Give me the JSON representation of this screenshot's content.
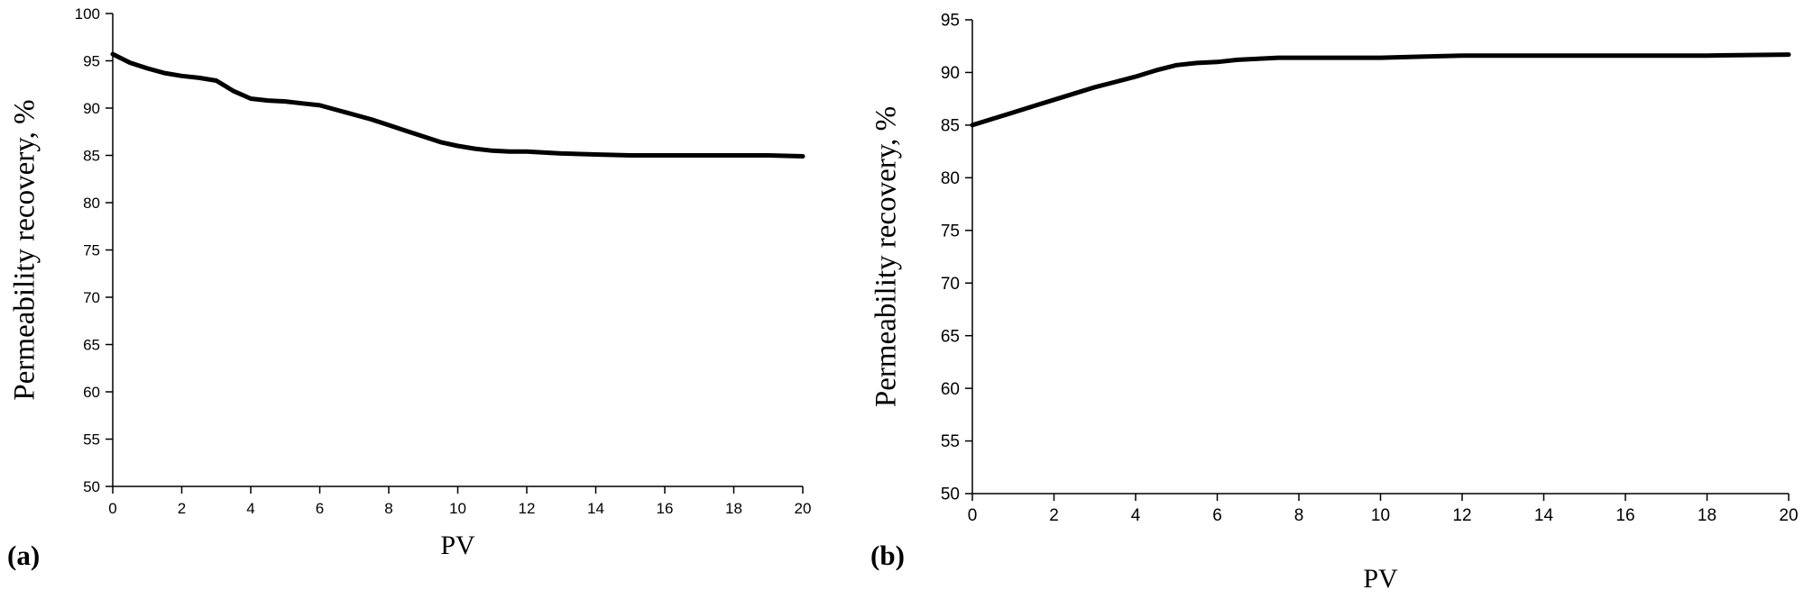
{
  "chart_data": [
    {
      "type": "line",
      "panel_label": "(a)",
      "xlabel": "PV",
      "ylabel": "Permeability recovery, %",
      "xlim": [
        0,
        20
      ],
      "ylim": [
        50,
        100
      ],
      "xticks": [
        0,
        2,
        4,
        6,
        8,
        10,
        12,
        14,
        16,
        18,
        20
      ],
      "yticks": [
        50,
        55,
        60,
        65,
        70,
        75,
        80,
        85,
        90,
        95,
        100
      ],
      "grid": false,
      "series": [
        {
          "x": [
            0,
            0.5,
            1,
            1.5,
            2,
            2.5,
            3,
            3.5,
            4,
            4.5,
            5,
            5.5,
            6,
            6.5,
            7,
            7.5,
            8,
            8.5,
            9,
            9.5,
            10,
            10.5,
            11,
            11.5,
            12,
            13,
            14,
            15,
            16,
            17,
            18,
            19,
            20
          ],
          "y": [
            95.7,
            94.8,
            94.2,
            93.7,
            93.4,
            93.2,
            92.9,
            91.8,
            91.0,
            90.8,
            90.7,
            90.5,
            90.3,
            89.8,
            89.3,
            88.8,
            88.2,
            87.6,
            87.0,
            86.4,
            86.0,
            85.7,
            85.5,
            85.4,
            85.4,
            85.2,
            85.1,
            85.0,
            85.0,
            85.0,
            85.0,
            85.0,
            84.9
          ]
        }
      ]
    },
    {
      "type": "line",
      "panel_label": "(b)",
      "xlabel": "PV",
      "ylabel": "Permeability recovery, %",
      "xlim": [
        0,
        20
      ],
      "ylim": [
        50,
        95
      ],
      "xticks": [
        0,
        2,
        4,
        6,
        8,
        10,
        12,
        14,
        16,
        18,
        20
      ],
      "yticks": [
        50,
        55,
        60,
        65,
        70,
        75,
        80,
        85,
        90,
        95
      ],
      "grid": false,
      "series": [
        {
          "x": [
            0,
            0.5,
            1,
            1.5,
            2,
            2.5,
            3,
            3.5,
            4,
            4.5,
            5,
            5.5,
            6,
            6.5,
            7,
            7.5,
            8,
            9,
            10,
            11,
            12,
            14,
            16,
            18,
            20
          ],
          "y": [
            85.0,
            85.6,
            86.2,
            86.8,
            87.4,
            88.0,
            88.6,
            89.1,
            89.6,
            90.2,
            90.7,
            90.9,
            91.0,
            91.2,
            91.3,
            91.4,
            91.4,
            91.4,
            91.4,
            91.5,
            91.6,
            91.6,
            91.6,
            91.6,
            91.7
          ]
        }
      ]
    }
  ]
}
